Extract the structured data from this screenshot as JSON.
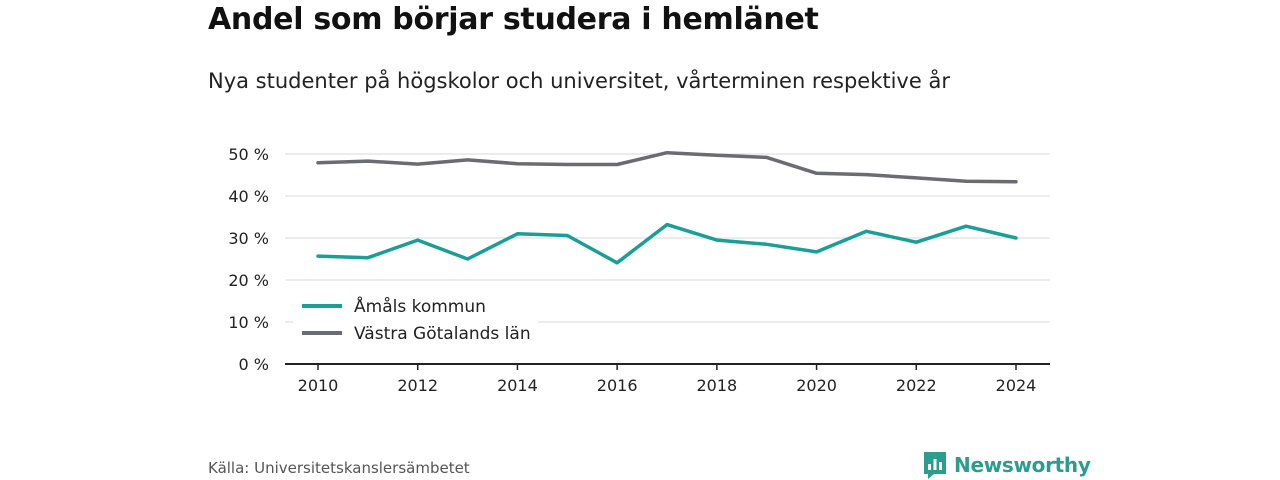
{
  "title": "Andel som börjar studera i hemlänet",
  "subtitle": "Nya studenter på högskolor och universitet, vårterminen respektive år",
  "source": "Källa: Universitetskanslersämbetet",
  "brand": {
    "name": "Newsworthy",
    "icon": "newsworthy-logo-icon",
    "color": "#2a9d8f"
  },
  "chart_data": {
    "type": "line",
    "x": [
      2010,
      2011,
      2012,
      2013,
      2014,
      2015,
      2016,
      2017,
      2018,
      2019,
      2020,
      2021,
      2022,
      2023,
      2024
    ],
    "x_ticks": [
      "2010",
      "2012",
      "2014",
      "2016",
      "2018",
      "2020",
      "2022",
      "2024"
    ],
    "y_ticks": [
      "0 %",
      "10 %",
      "20 %",
      "30 %",
      "40 %",
      "50 %"
    ],
    "ylim": [
      0,
      50
    ],
    "grid": true,
    "legend_position": "bottom-left",
    "series": [
      {
        "name": "Åmåls kommun",
        "color": "#1a9e96",
        "values": [
          25.7,
          25.3,
          29.5,
          25.0,
          31.0,
          30.6,
          24.1,
          33.2,
          29.5,
          28.5,
          26.7,
          31.6,
          29.0,
          32.8,
          30.0
        ]
      },
      {
        "name": "Västra Götalands län",
        "color": "#6b6b72",
        "values": [
          47.9,
          48.3,
          47.6,
          48.6,
          47.7,
          47.5,
          47.5,
          50.3,
          49.7,
          49.2,
          45.4,
          45.1,
          44.3,
          43.5,
          43.4
        ]
      }
    ]
  }
}
